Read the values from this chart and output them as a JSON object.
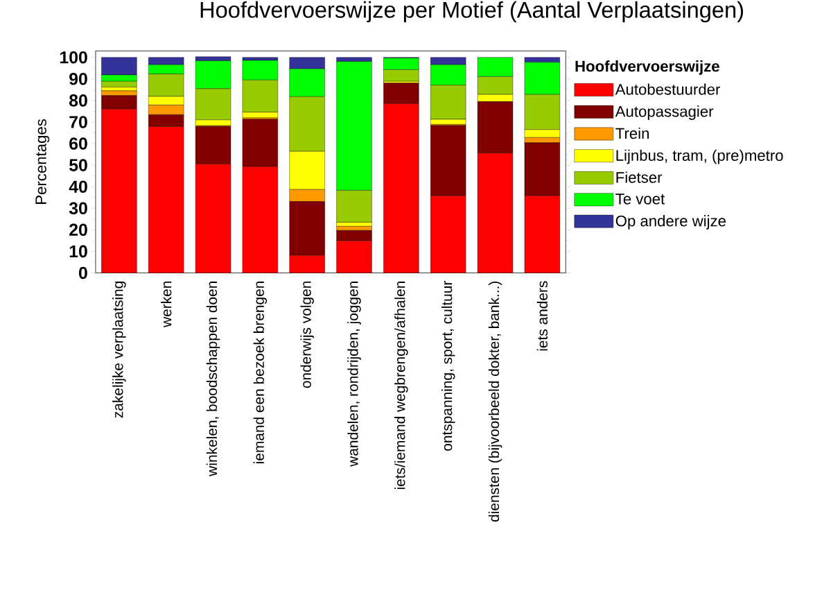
{
  "chart_data": {
    "type": "bar",
    "stacked": true,
    "title": "Hoofdvervoerswijze per Motief (Aantal Verplaatsingen)",
    "ylabel": "Percentages",
    "legend_title": "Hoofdvervoerswijze",
    "legend": "right",
    "categories": [
      "zakelijke verplaatsing",
      "werken",
      "winkelen, boodschappen doen",
      "iemand een bezoek brengen",
      "onderwijs volgen",
      "wandelen, rondrijden, joggen",
      "iets/iemand wegbrengen/afhalen",
      "ontspanning, sport, cultuur",
      "diensten (bijvoorbeeld dokter, bank...)",
      "iets anders"
    ],
    "ylim": [
      0,
      103
    ],
    "yticks": [
      0,
      10,
      20,
      30,
      40,
      50,
      60,
      70,
      80,
      90,
      100
    ],
    "series": [
      {
        "name": "Autobestuurder",
        "color": "#ff0000",
        "values": [
          76.0,
          67.9,
          50.5,
          49.3,
          8.1,
          14.9,
          78.5,
          35.8,
          55.6,
          35.8
        ]
      },
      {
        "name": "Autopassagier",
        "color": "#800000",
        "values": [
          6.3,
          5.5,
          17.5,
          22.0,
          25.0,
          4.8,
          9.6,
          32.6,
          23.9,
          24.6
        ]
      },
      {
        "name": "Trein",
        "color": "#ff9900",
        "values": [
          2.2,
          4.5,
          0.3,
          0.6,
          5.6,
          1.9,
          0,
          0.5,
          0,
          2.4
        ]
      },
      {
        "name": "Lijnbus, tram, (pre)metro",
        "color": "#ffff00",
        "values": [
          1.7,
          4.0,
          2.7,
          2.7,
          17.7,
          1.9,
          0.8,
          2.4,
          3.3,
          3.7
        ]
      },
      {
        "name": "Fietser",
        "color": "#99cc00",
        "values": [
          2.7,
          10.4,
          14.5,
          14.9,
          25.4,
          14.8,
          5.4,
          15.8,
          8.3,
          16.3
        ]
      },
      {
        "name": "Te voet",
        "color": "#00ff00",
        "values": [
          3.0,
          4.3,
          12.9,
          9.1,
          12.9,
          59.8,
          5.4,
          9.5,
          8.9,
          14.9
        ]
      },
      {
        "name": "Op andere wijze",
        "color": "#333399",
        "values": [
          8.1,
          3.4,
          1.9,
          1.4,
          5.3,
          1.9,
          0.3,
          3.4,
          0,
          2.3
        ]
      }
    ]
  }
}
